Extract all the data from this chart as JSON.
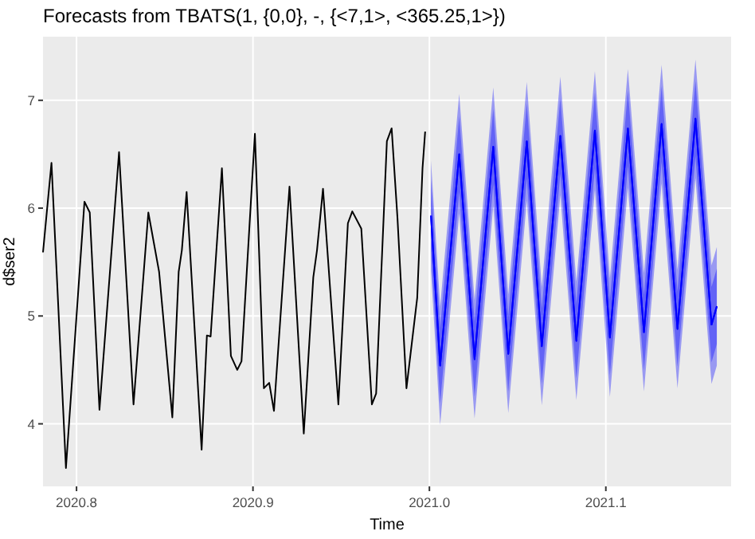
{
  "chart_data": {
    "type": "line",
    "title": "Forecasts from TBATS(1, {0,0}, -, {<7,1>, <365.25,1>})",
    "xlabel": "Time",
    "ylabel": "d$ser2",
    "xlim": [
      2020.781,
      2021.171
    ],
    "ylim": [
      3.42,
      7.59
    ],
    "xticks": [
      2020.8,
      2020.9,
      {
        "value": 2021.0,
        "label": "2021.0"
      },
      2021.1
    ],
    "yticks": [
      4,
      5,
      6,
      7
    ],
    "grid": true,
    "series": [
      {
        "color": "#000000",
        "x": [
          2020.781,
          2020.7858,
          2020.794,
          2020.8045,
          2020.8075,
          2020.813,
          2020.8241,
          2020.8323,
          2020.8407,
          2020.8468,
          2020.8543,
          2020.8579,
          2020.8597,
          2020.8624,
          2020.8709,
          2020.8739,
          2020.876,
          2020.8824,
          2020.8875,
          2020.8911,
          2020.8935,
          2020.9011,
          2020.9062,
          2020.9092,
          2020.9119,
          2020.9207,
          2020.9288,
          2020.9342,
          2020.9363,
          2020.9397,
          2020.9484,
          2020.9538,
          2020.9563,
          2020.9614,
          2020.9674,
          2020.9698,
          2020.9759,
          2020.9786,
          2020.9819,
          2020.987,
          2020.9931,
          2020.9961,
          2020.9976
        ],
        "values": [
          5.59,
          6.42,
          3.59,
          6.06,
          5.96,
          4.13,
          6.52,
          4.18,
          5.96,
          5.41,
          4.06,
          5.41,
          5.61,
          6.15,
          3.76,
          4.82,
          4.81,
          6.37,
          4.63,
          4.5,
          4.58,
          6.69,
          4.33,
          4.38,
          4.12,
          6.2,
          3.91,
          5.36,
          5.61,
          6.18,
          4.18,
          5.86,
          5.97,
          5.81,
          4.18,
          4.28,
          6.62,
          6.74,
          5.91,
          4.33,
          5.17,
          6.37,
          6.71
        ]
      },
      {
        "color": "#0000ff",
        "x": [
          2021.0009,
          2021.0061,
          2021.0169,
          2021.0256,
          2021.0362,
          2021.0447,
          2021.0552,
          2021.0637,
          2021.0742,
          2021.0833,
          2021.0938,
          2021.1023,
          2021.1125,
          2021.1216,
          2021.1316,
          2021.1406,
          2021.1508,
          2021.1599,
          2021.1629
        ],
        "values": [
          5.93,
          4.54,
          6.5,
          4.6,
          6.57,
          4.65,
          6.62,
          4.72,
          6.67,
          4.77,
          6.72,
          4.8,
          6.74,
          4.85,
          6.78,
          4.88,
          6.83,
          4.92,
          5.09
        ],
        "lower": [
          5.6,
          4.19,
          6.15,
          4.25,
          6.22,
          4.3,
          6.27,
          4.37,
          6.32,
          4.42,
          6.37,
          4.45,
          6.39,
          4.5,
          6.43,
          4.53,
          6.48,
          4.57,
          4.74
        ],
        "upper": [
          6.26,
          4.89,
          6.85,
          4.95,
          6.92,
          5.0,
          6.97,
          5.07,
          7.02,
          5.12,
          7.07,
          5.15,
          7.09,
          5.2,
          7.13,
          5.23,
          7.18,
          5.27,
          5.44
        ]
      },
      {
        "color": "#0000ff",
        "x": [
          2021.0009,
          2021.0061,
          2021.0169,
          2021.0256,
          2021.0362,
          2021.0447,
          2021.0552,
          2021.0637,
          2021.0742,
          2021.0833,
          2021.0938,
          2021.1023,
          2021.1125,
          2021.1216,
          2021.1316,
          2021.1406,
          2021.1508,
          2021.1599,
          2021.1629
        ],
        "values": [
          5.93,
          4.54,
          6.5,
          4.6,
          6.57,
          4.65,
          6.62,
          4.72,
          6.67,
          4.77,
          6.72,
          4.8,
          6.74,
          4.85,
          6.78,
          4.88,
          6.83,
          4.92,
          5.09
        ],
        "lower": [
          5.42,
          3.99,
          5.95,
          4.05,
          6.02,
          4.1,
          6.07,
          4.17,
          6.12,
          4.22,
          6.17,
          4.25,
          6.19,
          4.3,
          6.23,
          4.33,
          6.28,
          4.37,
          4.54
        ],
        "upper": [
          6.44,
          5.09,
          7.06,
          5.15,
          7.12,
          5.2,
          7.17,
          5.27,
          7.22,
          5.32,
          7.27,
          5.35,
          7.29,
          5.4,
          7.33,
          5.43,
          7.38,
          5.47,
          5.64
        ]
      }
    ]
  }
}
